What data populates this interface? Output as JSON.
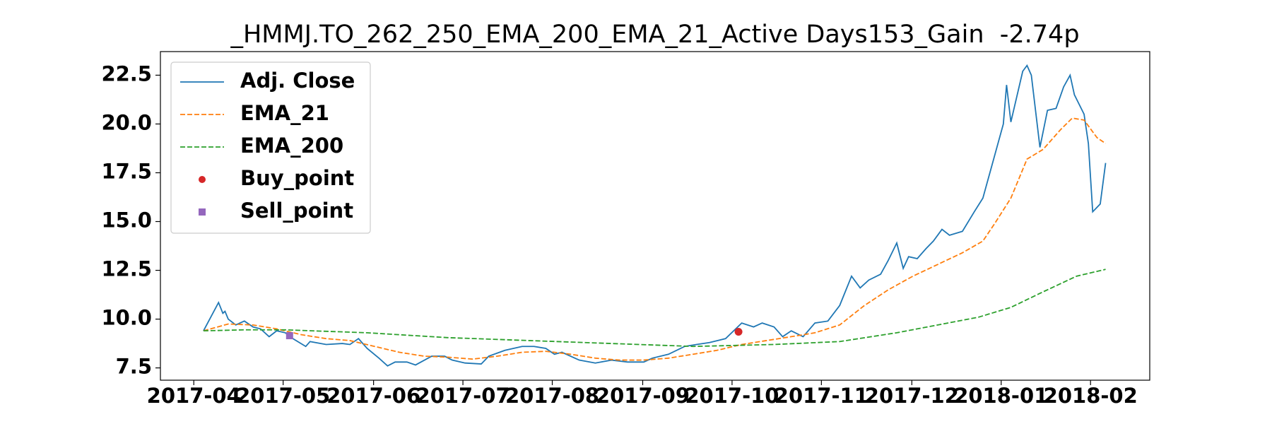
{
  "chart_data": {
    "type": "line",
    "title": "_HMMJ.TO_262_250_EMA_200_EMA_21_Active Days153_Gain  -2.74p",
    "xlim": [
      2017.219,
      2018.138
    ],
    "xticks": [
      {
        "value": 2017.25,
        "label": "2017-04"
      },
      {
        "value": 2017.333,
        "label": "2017-05"
      },
      {
        "value": 2017.417,
        "label": "2017-06"
      },
      {
        "value": 2017.5,
        "label": "2017-07"
      },
      {
        "value": 2017.583,
        "label": "2017-08"
      },
      {
        "value": 2017.667,
        "label": "2017-09"
      },
      {
        "value": 2017.75,
        "label": "2017-10"
      },
      {
        "value": 2017.833,
        "label": "2017-11"
      },
      {
        "value": 2017.917,
        "label": "2017-12"
      },
      {
        "value": 2018.0,
        "label": "2018-01"
      },
      {
        "value": 2018.083,
        "label": "2018-02"
      }
    ],
    "ylim": [
      6.87,
      23.71
    ],
    "yticks": [
      7.5,
      {
        "value": 10,
        "label": "10.0"
      },
      12.5,
      {
        "value": 15,
        "label": "15.0"
      },
      17.5,
      {
        "value": 20,
        "label": "20.0"
      },
      22.5
    ],
    "legend": "upper left",
    "series": [
      {
        "name": "Adj. Close",
        "color": "#1f77b4",
        "style": "solid",
        "x": [
          2017.259,
          2017.273,
          2017.277,
          2017.279,
          2017.282,
          2017.289,
          2017.297,
          2017.305,
          2017.312,
          2017.32,
          2017.327,
          2017.335,
          2017.342,
          2017.354,
          2017.358,
          2017.373,
          2017.388,
          2017.395,
          2017.403,
          2017.411,
          2017.422,
          2017.43,
          2017.437,
          2017.448,
          2017.456,
          2017.471,
          2017.483,
          2017.49,
          2017.502,
          2017.517,
          2017.524,
          2017.539,
          2017.555,
          2017.566,
          2017.577,
          2017.585,
          2017.592,
          2017.608,
          2017.623,
          2017.638,
          2017.653,
          2017.668,
          2017.676,
          2017.691,
          2017.706,
          2017.717,
          2017.729,
          2017.744,
          2017.759,
          2017.77,
          2017.778,
          2017.789,
          2017.797,
          2017.805,
          2017.816,
          2017.827,
          2017.839,
          2017.85,
          2017.861,
          2017.869,
          2017.877,
          2017.888,
          2017.895,
          2017.903,
          2017.909,
          2017.914,
          2017.922,
          2017.93,
          2017.937,
          2017.945,
          2017.952,
          2017.964,
          2017.975,
          2017.983,
          2017.99,
          2018.002,
          2018.005,
          2018.009,
          2018.02,
          2018.024,
          2018.028,
          2018.036,
          2018.043,
          2018.051,
          2018.058,
          2018.064,
          2018.068,
          2018.077,
          2018.081,
          2018.085,
          2018.092,
          2018.097
        ],
        "values": [
          9.4,
          10.85,
          10.3,
          10.4,
          10.0,
          9.7,
          9.9,
          9.6,
          9.5,
          9.1,
          9.4,
          9.3,
          9.0,
          8.6,
          8.85,
          8.7,
          8.75,
          8.7,
          9.0,
          8.5,
          8.0,
          7.6,
          7.8,
          7.8,
          7.65,
          8.1,
          8.1,
          7.9,
          7.75,
          7.7,
          8.1,
          8.4,
          8.6,
          8.6,
          8.5,
          8.2,
          8.3,
          7.9,
          7.75,
          7.9,
          7.8,
          7.8,
          8.0,
          8.2,
          8.6,
          8.7,
          8.8,
          9.0,
          9.8,
          9.6,
          9.8,
          9.6,
          9.1,
          9.4,
          9.1,
          9.8,
          9.9,
          10.7,
          12.2,
          11.6,
          12.0,
          12.3,
          13.0,
          13.9,
          12.6,
          13.2,
          13.1,
          13.6,
          14.0,
          14.6,
          14.3,
          14.5,
          15.5,
          16.2,
          17.6,
          20.0,
          22.0,
          20.1,
          22.7,
          23.0,
          22.5,
          18.8,
          20.7,
          20.8,
          21.9,
          22.5,
          21.5,
          20.5,
          19.0,
          15.5,
          15.9,
          18.0
        ]
      },
      {
        "name": "EMA_21",
        "color": "#ff7f0e",
        "style": "dashed",
        "x": [
          2017.259,
          2017.282,
          2017.305,
          2017.327,
          2017.35,
          2017.373,
          2017.395,
          2017.418,
          2017.441,
          2017.464,
          2017.486,
          2017.509,
          2017.532,
          2017.555,
          2017.577,
          2017.6,
          2017.623,
          2017.645,
          2017.668,
          2017.691,
          2017.714,
          2017.736,
          2017.759,
          2017.782,
          2017.805,
          2017.827,
          2017.85,
          2017.873,
          2017.895,
          2017.918,
          2017.941,
          2017.964,
          2017.983,
          2017.994,
          2018.009,
          2018.024,
          2018.039,
          2018.055,
          2018.066,
          2018.077,
          2018.089,
          2018.097
        ],
        "values": [
          9.4,
          9.75,
          9.7,
          9.5,
          9.2,
          9.0,
          8.9,
          8.6,
          8.3,
          8.1,
          8.05,
          7.95,
          8.1,
          8.3,
          8.35,
          8.2,
          8.0,
          7.9,
          7.9,
          8.0,
          8.2,
          8.4,
          8.7,
          8.9,
          9.1,
          9.3,
          9.7,
          10.7,
          11.5,
          12.2,
          12.8,
          13.4,
          14.0,
          14.9,
          16.2,
          18.2,
          18.7,
          19.7,
          20.3,
          20.2,
          19.3,
          19.0
        ]
      },
      {
        "name": "EMA_200",
        "color": "#2ca02c",
        "style": "dashed",
        "x": [
          2017.259,
          2017.297,
          2017.335,
          2017.411,
          2017.486,
          2017.562,
          2017.638,
          2017.714,
          2017.789,
          2017.85,
          2017.903,
          2017.941,
          2017.979,
          2018.009,
          2018.039,
          2018.07,
          2018.097
        ],
        "values": [
          9.4,
          9.45,
          9.45,
          9.3,
          9.05,
          8.9,
          8.75,
          8.6,
          8.7,
          8.85,
          9.3,
          9.7,
          10.1,
          10.6,
          11.4,
          12.2,
          12.55
        ]
      },
      {
        "name": "Buy_point",
        "color": "#d62728",
        "style": "marker",
        "marker": "circle",
        "x": [
          2017.756
        ],
        "values": [
          9.35
        ]
      },
      {
        "name": "Sell_point",
        "color": "#9467bd",
        "style": "marker",
        "marker": "square",
        "x": [
          2017.339
        ],
        "values": [
          9.15
        ]
      }
    ]
  }
}
